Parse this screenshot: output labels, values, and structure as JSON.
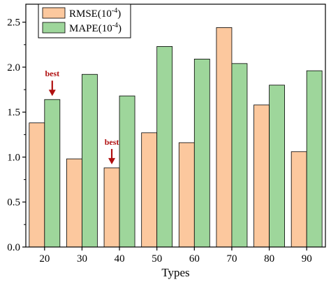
{
  "chart_data": {
    "type": "bar",
    "title": "",
    "xlabel": "Types",
    "ylabel": "",
    "categories": [
      "20",
      "30",
      "40",
      "50",
      "60",
      "70",
      "80",
      "90"
    ],
    "series": [
      {
        "name": "RMSE",
        "unit": "10",
        "exp": "-4",
        "color": "#fcc89e",
        "values": [
          1.38,
          0.98,
          0.88,
          1.27,
          1.16,
          2.44,
          1.58,
          1.06
        ]
      },
      {
        "name": "MAPE",
        "unit": "10",
        "exp": "-4",
        "color": "#9ed69b",
        "values": [
          1.64,
          1.92,
          1.68,
          2.23,
          2.09,
          2.04,
          1.8,
          1.96
        ]
      }
    ],
    "ylim": [
      0,
      2.7
    ],
    "yticks": [
      "0.0",
      "0.5",
      "1.0",
      "1.5",
      "2.0",
      "2.5"
    ],
    "grid": false,
    "legend_position": "top-left",
    "annotations": [
      {
        "text": "best",
        "category": "20",
        "series": "MAPE",
        "color": "#b01010"
      },
      {
        "text": "best",
        "category": "40",
        "series": "RMSE",
        "color": "#b01010"
      }
    ]
  }
}
